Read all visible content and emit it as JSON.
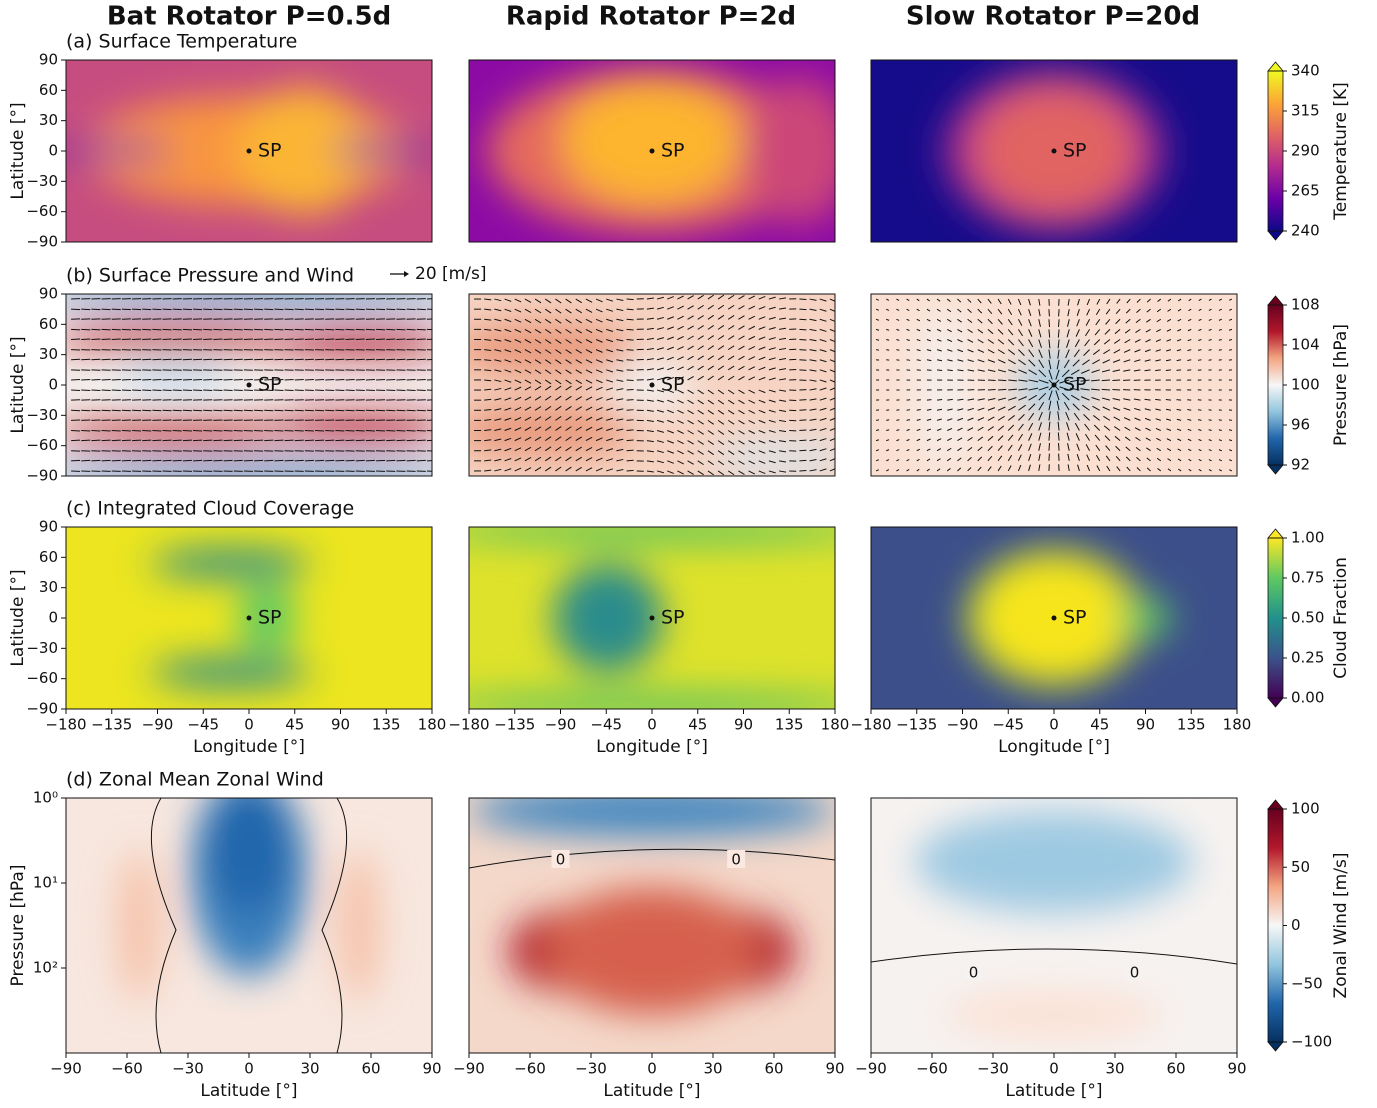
{
  "columns": [
    {
      "title": "Bat Rotator  P=0.5d",
      "color": "#b4474b"
    },
    {
      "title": "Rapid Rotator  P=2d",
      "color": "#6b8c6f"
    },
    {
      "title": "Slow Rotator  P=20d",
      "color": "#3f5b85"
    }
  ],
  "chart_data": [
    {
      "type": "heatmap",
      "title": "(a) Surface Temperature",
      "ylabel": "Latitude [°]",
      "marker": {
        "label": "SP",
        "x": 0,
        "y": 0
      },
      "xlim": [
        -180,
        180
      ],
      "ylim": [
        -90,
        90
      ],
      "yticks": [
        {
          "value": -90,
          "label": "−90"
        },
        {
          "value": -60,
          "label": "−60"
        },
        {
          "value": -30,
          "label": "−30"
        },
        0,
        30,
        60,
        90
      ],
      "colorbar": {
        "label": "Temperature [K]",
        "lim": [
          240,
          340
        ],
        "ticks": [
          240,
          265,
          290,
          315,
          340
        ],
        "colors": [
          "#0d0887",
          "#6a00a8",
          "#b12a90",
          "#e16462",
          "#fca636",
          "#f0f921"
        ]
      }
    },
    {
      "type": "heatmap",
      "title": "(b) Surface Pressure and Wind",
      "wind_key": "20 [m/s]",
      "ylabel": "Latitude [°]",
      "marker": {
        "label": "SP",
        "x": 0,
        "y": 0
      },
      "xlim": [
        -180,
        180
      ],
      "ylim": [
        -90,
        90
      ],
      "yticks": [
        {
          "value": -90,
          "label": "−90"
        },
        {
          "value": -60,
          "label": "−60"
        },
        {
          "value": -30,
          "label": "−30"
        },
        0,
        30,
        60,
        90
      ],
      "colorbar": {
        "label": "Pressure [hPa]",
        "lim": [
          92,
          108
        ],
        "ticks": [
          92,
          96,
          100,
          104,
          108
        ],
        "colors": [
          "#053061",
          "#2166ac",
          "#92c5de",
          "#f7f7f7",
          "#f4a582",
          "#b2182b",
          "#67001f"
        ]
      }
    },
    {
      "type": "heatmap",
      "title": "(c) Integrated Cloud Coverage",
      "ylabel": "Latitude [°]",
      "xlabel": "Longitude [°]",
      "marker": {
        "label": "SP",
        "x": 0,
        "y": 0
      },
      "xlim": [
        -180,
        180
      ],
      "ylim": [
        -90,
        90
      ],
      "xticks": [
        {
          "value": -180,
          "label": "−180"
        },
        {
          "value": -135,
          "label": "−135"
        },
        {
          "value": -90,
          "label": "−90"
        },
        {
          "value": -45,
          "label": "−45"
        },
        0,
        45,
        90,
        135,
        180
      ],
      "yticks": [
        {
          "value": -90,
          "label": "−90"
        },
        {
          "value": -60,
          "label": "−60"
        },
        {
          "value": -30,
          "label": "−30"
        },
        0,
        30,
        60,
        90
      ],
      "colorbar": {
        "label": "Cloud Fraction",
        "lim": [
          0,
          1
        ],
        "ticks": [
          {
            "value": 0,
            "label": "0.00"
          },
          {
            "value": 0.25,
            "label": "0.25"
          },
          {
            "value": 0.5,
            "label": "0.50"
          },
          {
            "value": 0.75,
            "label": "0.75"
          },
          {
            "value": 1,
            "label": "1.00"
          }
        ],
        "colors": [
          "#440154",
          "#3b528b",
          "#21918c",
          "#5ec962",
          "#fde725"
        ]
      }
    },
    {
      "type": "heatmap",
      "title": "(d) Zonal Mean Zonal Wind",
      "ylabel": "Pressure [hPa]",
      "xlabel": "Latitude [°]",
      "contour_label": "0",
      "log_y": true,
      "xlim": [
        -90,
        90
      ],
      "ylim": [
        1000,
        1
      ],
      "xticks": [
        {
          "value": -90,
          "label": "−90"
        },
        {
          "value": -60,
          "label": "−60"
        },
        {
          "value": -30,
          "label": "−30"
        },
        0,
        30,
        60,
        90
      ],
      "yticks": [
        {
          "value": 1,
          "label": "10⁰"
        },
        {
          "value": 10,
          "label": "10¹"
        },
        {
          "value": 100,
          "label": "10²"
        }
      ],
      "colorbar": {
        "label": "Zonal Wind [m/s]",
        "lim": [
          -100,
          100
        ],
        "ticks": [
          {
            "value": -100,
            "label": "−100"
          },
          {
            "value": -50,
            "label": "−50"
          },
          0,
          50,
          100
        ],
        "colors": [
          "#053061",
          "#2166ac",
          "#92c5de",
          "#f7f7f7",
          "#f4a582",
          "#b2182b",
          "#67001f"
        ]
      }
    }
  ]
}
